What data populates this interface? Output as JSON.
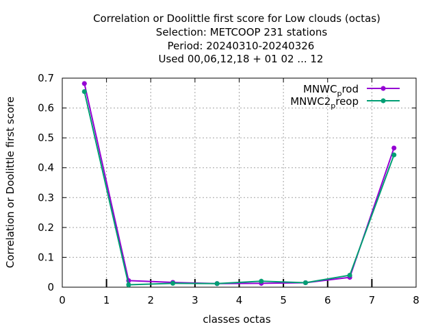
{
  "chart_data": {
    "type": "line",
    "title_lines": [
      "Correlation or Doolittle first score  for Low clouds (octas)",
      "Selection: METCOOP    231 stations",
      "Period: 20240310-20240326",
      "Used  00,06,12,18 + 01 02 ... 12"
    ],
    "xlabel": "classes octas",
    "ylabel": "Correlation or Doolittle first score",
    "xlim": [
      0,
      8
    ],
    "ylim": [
      0,
      0.7
    ],
    "xticks": [
      0,
      1,
      2,
      3,
      4,
      5,
      6,
      7,
      8
    ],
    "xtick_labels": [
      "0",
      "1",
      "2",
      "3",
      "4",
      "5",
      "6",
      "7",
      "8"
    ],
    "yticks": [
      0,
      0.1,
      0.2,
      0.3,
      0.4,
      0.5,
      0.6,
      0.7
    ],
    "ytick_labels": [
      "0",
      "0.1",
      "0.2",
      "0.3",
      "0.4",
      "0.5",
      "0.6",
      "0.7"
    ],
    "grid": true,
    "legend_position": "top-right",
    "x": [
      0.5,
      1.5,
      2.5,
      3.5,
      4.5,
      5.5,
      6.5,
      7.5
    ],
    "series": [
      {
        "name_main": "MNWC",
        "name_sub": "p",
        "name_rest": "rod",
        "color": "#9400d3",
        "values": [
          0.682,
          0.022,
          0.016,
          0.012,
          0.013,
          0.015,
          0.033,
          0.466
        ]
      },
      {
        "name_main": "MNWC2",
        "name_sub": "p",
        "name_rest": "reop",
        "color": "#009e73",
        "values": [
          0.655,
          0.008,
          0.013,
          0.012,
          0.02,
          0.015,
          0.04,
          0.443
        ]
      }
    ]
  }
}
